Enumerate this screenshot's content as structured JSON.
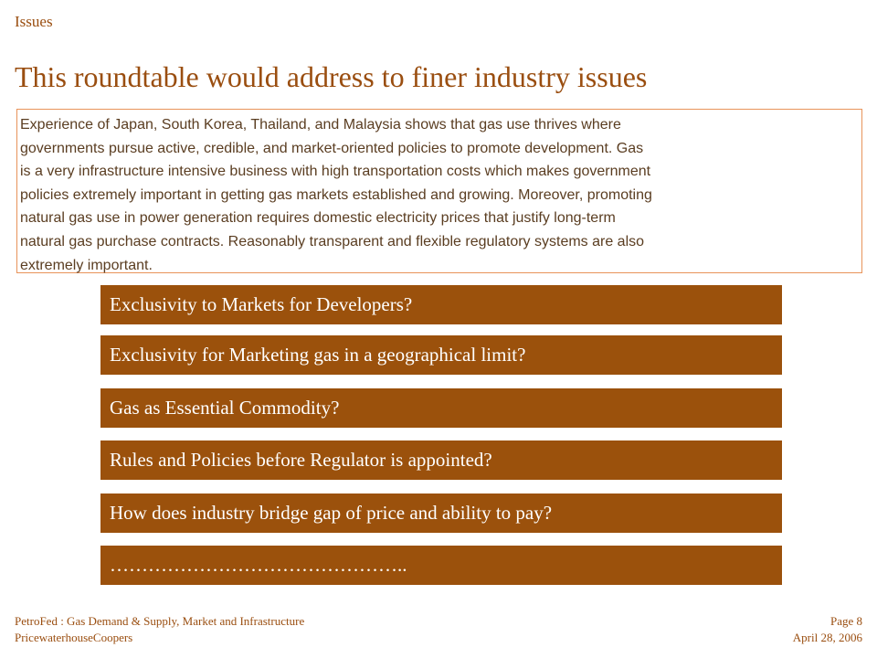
{
  "slide": {
    "section": "Issues",
    "title": "This roundtable would address to finer industry issues"
  },
  "intro": {
    "lines": [
      "Experience of Japan, South Korea, Thailand, and Malaysia shows that gas use thrives where",
      "governments pursue active, credible, and market-oriented policies to promote development. Gas",
      "is a very infrastructure intensive business with high transportation costs which makes government",
      "policies extremely important in getting gas markets established and growing. Moreover, promoting",
      "natural gas use in power generation requires domestic electricity prices that justify long-term",
      "natural gas purchase contracts. Reasonably transparent and flexible regulatory systems are also",
      "extremely important."
    ]
  },
  "issues": [
    "Exclusivity to Markets for Developers?",
    "Exclusivity for Marketing gas in a geographical limit?",
    "Gas as Essential Commodity?",
    "Rules and Policies before Regulator is appointed?",
    "How does industry bridge gap of price and ability to pay?",
    "……………………………………….."
  ],
  "footer": {
    "event": "PetroFed : Gas Demand & Supply, Market and Infrastructure",
    "company": "PricewaterhouseCoopers",
    "page": "Page 8",
    "date": "April 28, 2006"
  },
  "colors": {
    "accent": "#9a4e10",
    "bar": "#9b510c",
    "box_border": "#e8935a"
  }
}
